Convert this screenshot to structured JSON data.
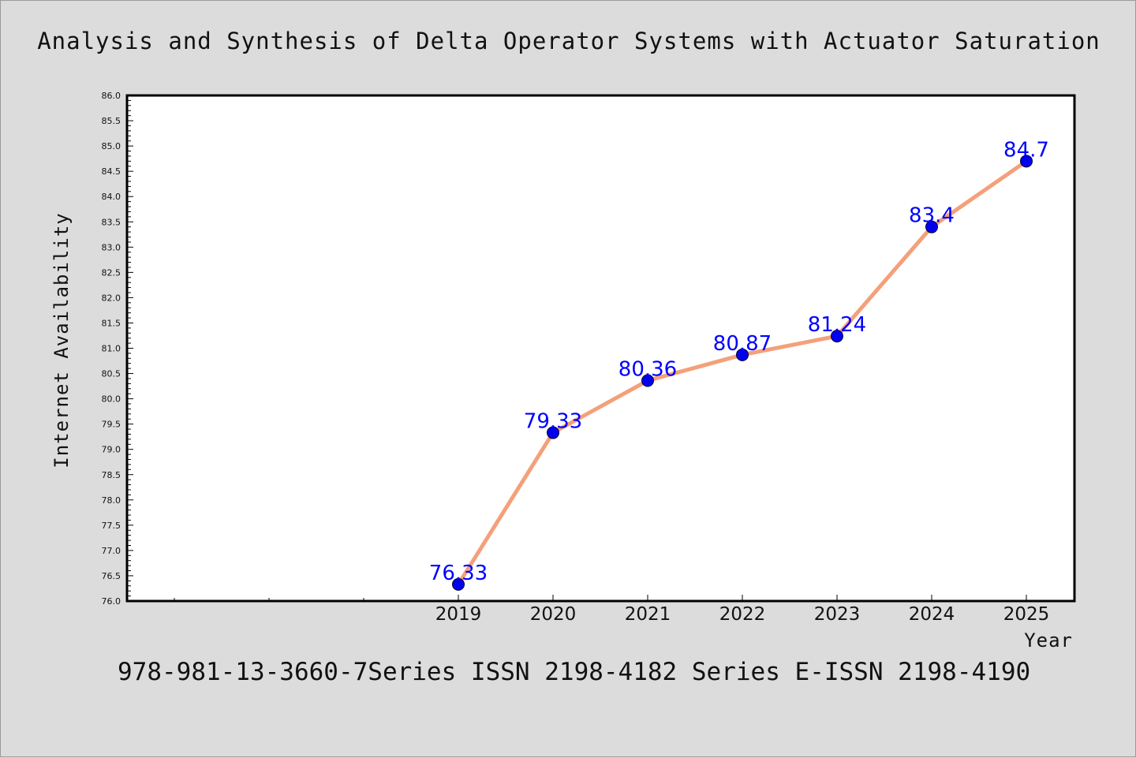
{
  "chart_data": {
    "type": "line",
    "title": "Analysis and Synthesis of Delta Operator Systems with Actuator Saturation",
    "footer": "978-981-13-3660-7Series ISSN 2198-4182 Series E-ISSN 2198-4190",
    "xlabel": "Year",
    "ylabel": "Internet Availability",
    "categories": [
      "2019",
      "2020",
      "2021",
      "2022",
      "2023",
      "2024",
      "2025"
    ],
    "series": [
      {
        "values": [
          76.33,
          79.33,
          80.36,
          80.87,
          81.24,
          83.4,
          84.7
        ],
        "labels": [
          "76.33",
          "79.33",
          "80.36",
          "80.87",
          "81.24",
          "83.4",
          "84.7"
        ]
      }
    ],
    "ylim": [
      76.0,
      86.0
    ],
    "y_ticks": [
      "76.0",
      "76.5",
      "77.0",
      "77.5",
      "78.0",
      "78.5",
      "79.0",
      "79.5",
      "80.0",
      "80.5",
      "81.0",
      "81.5",
      "82.0",
      "82.5",
      "83.0",
      "83.5",
      "84.0",
      "84.5",
      "85.0",
      "85.5",
      "86.0"
    ],
    "grid": false,
    "legend": "none",
    "colors": {
      "line": "#f4a07a",
      "marker": "#0000ee",
      "data_label": "#0000ff",
      "plot_background": "#ffffff",
      "page_background": "#dcdcdc"
    }
  }
}
